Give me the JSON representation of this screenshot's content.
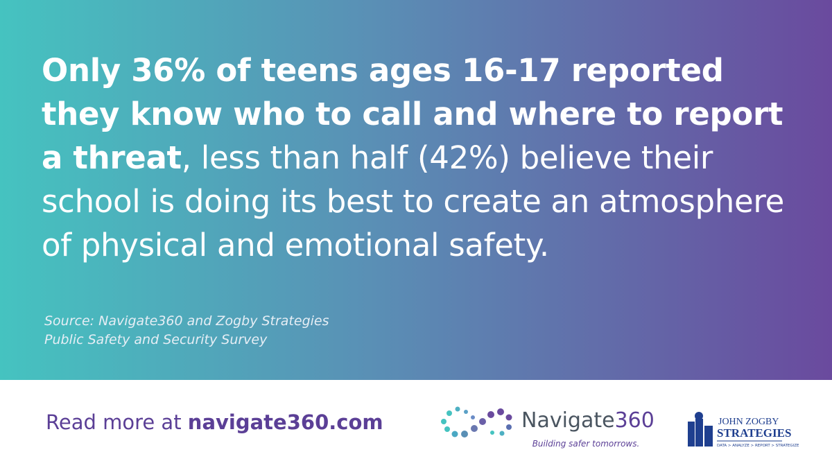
{
  "headline": {
    "bold": "Only 36% of teens ages 16-17 reported they know who to call and where to report a threat",
    "regular": ", less than half (42%) believe their school is doing its best to create an atmosphere of physical and emotional safety."
  },
  "source": [
    "Source: Navigate360 and Zogby Strategies",
    "Public Safety and Security Survey"
  ],
  "footer": {
    "prefix": "Read more at",
    "link": "navigate360.com"
  },
  "navigate_logo": {
    "name": "Navigate",
    "number": "360",
    "tagline": "Building safer tomorrows."
  },
  "zogby_logo": {
    "top": "JOHN ZOGBY",
    "name": "STRATEGIES",
    "tagline": "DATA > ANALYZE > REPORT > STRATEGIZE"
  }
}
